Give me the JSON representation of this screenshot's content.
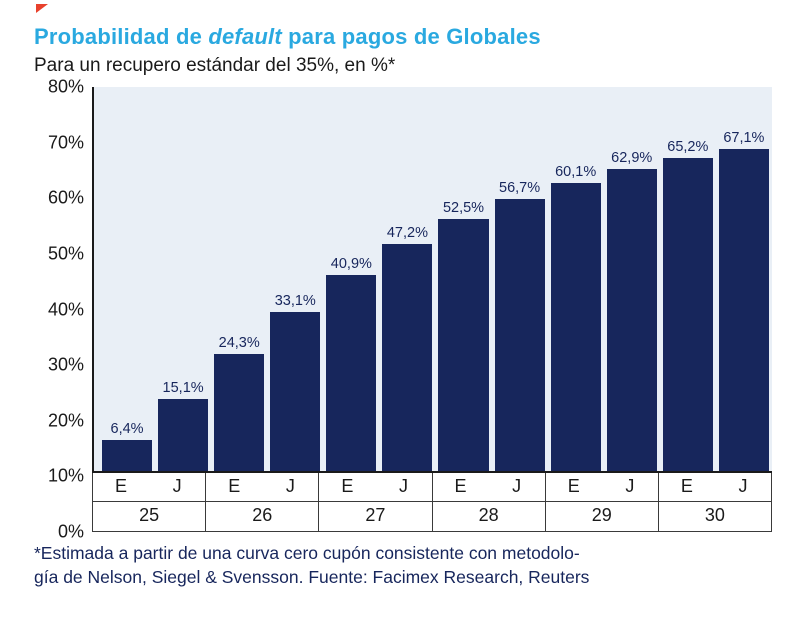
{
  "decor": {
    "corner_mark_color": "#e8412c"
  },
  "header": {
    "title_pre": "Probabilidad de ",
    "title_italic": "default",
    "title_post": " para pagos de Globales",
    "subtitle": "Para un recupero estándar del 35%, en %*"
  },
  "chart_data": {
    "type": "bar",
    "title": "Probabilidad de default para pagos de Globales",
    "subtitle": "Para un recupero estándar del 35%, en %*",
    "ylim": [
      0,
      80
    ],
    "ytick_step": 10,
    "ytick_labels": [
      "80%",
      "70%",
      "60%",
      "50%",
      "40%",
      "30%",
      "20%",
      "10%",
      "0%"
    ],
    "grid": "off",
    "legend": "none",
    "bar_color": "#17265c",
    "plot_bg": "#e9eff6",
    "years": [
      "25",
      "26",
      "27",
      "28",
      "29",
      "30"
    ],
    "period_labels": [
      "E",
      "J"
    ],
    "categories": [
      "E 25",
      "J 25",
      "E 26",
      "J 26",
      "E 27",
      "J 27",
      "E 28",
      "J 28",
      "E 29",
      "J 29",
      "E 30",
      "J 30"
    ],
    "values": [
      6.4,
      15.1,
      24.3,
      33.1,
      40.9,
      47.2,
      52.5,
      56.7,
      60.1,
      62.9,
      65.2,
      67.1
    ],
    "value_labels": [
      "6,4%",
      "15,1%",
      "24,3%",
      "33,1%",
      "40,9%",
      "47,2%",
      "52,5%",
      "56,7%",
      "60,1%",
      "62,9%",
      "65,2%",
      "67,1%"
    ]
  },
  "footnote": {
    "lines": [
      "*Estimada a partir de una curva cero cupón consistente con metodolo-",
      "gía de Nelson, Siegel & Svensson. Fuente: Facimex Research, Reuters"
    ]
  }
}
